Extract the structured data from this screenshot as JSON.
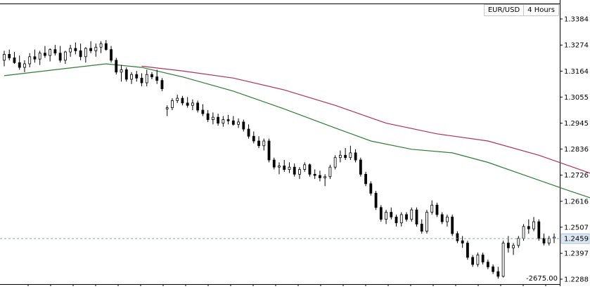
{
  "chart_data": {
    "type": "candlestick",
    "symbol": "EUR/USD",
    "timeframe": "4 Hours",
    "ylim": [
      1.2288,
      1.3384
    ],
    "y_ticks": [
      "1.3384",
      "1.3274",
      "1.3164",
      "1.3055",
      "1.2945",
      "1.2836",
      "1.2726",
      "1.2616",
      "1.2507",
      "1.2397",
      "1.2288"
    ],
    "current_price": "1.2459",
    "annotation": "-2675.00",
    "grid": false,
    "colors": {
      "up": "#ffffff",
      "down": "#000000",
      "ma_fast": "#2e7d32",
      "ma_slow": "#b0305a",
      "price_line": "#7fa3c8",
      "price_label_bg": "#dbe7f3"
    },
    "candles": [
      [
        1.321,
        1.325,
        1.3185,
        1.3235
      ],
      [
        1.3235,
        1.3255,
        1.321,
        1.322
      ],
      [
        1.322,
        1.3245,
        1.3195,
        1.32
      ],
      [
        1.32,
        1.323,
        1.317,
        1.318
      ],
      [
        1.318,
        1.321,
        1.316,
        1.3195
      ],
      [
        1.3195,
        1.324,
        1.318,
        1.3225
      ],
      [
        1.3225,
        1.3255,
        1.32,
        1.3215
      ],
      [
        1.3215,
        1.325,
        1.319,
        1.324
      ],
      [
        1.324,
        1.327,
        1.322,
        1.323
      ],
      [
        1.323,
        1.326,
        1.3205,
        1.3255
      ],
      [
        1.3255,
        1.3275,
        1.323,
        1.324
      ],
      [
        1.324,
        1.327,
        1.32,
        1.321
      ],
      [
        1.321,
        1.325,
        1.3195,
        1.3245
      ],
      [
        1.3245,
        1.3275,
        1.3225,
        1.326
      ],
      [
        1.326,
        1.3285,
        1.3235,
        1.325
      ],
      [
        1.325,
        1.328,
        1.321,
        1.3225
      ],
      [
        1.3225,
        1.3265,
        1.32,
        1.326
      ],
      [
        1.326,
        1.329,
        1.324,
        1.325
      ],
      [
        1.325,
        1.328,
        1.3225,
        1.3265
      ],
      [
        1.3265,
        1.329,
        1.324,
        1.328
      ],
      [
        1.328,
        1.3295,
        1.325,
        1.3255
      ],
      [
        1.3255,
        1.327,
        1.32,
        1.321
      ],
      [
        1.321,
        1.322,
        1.315,
        1.316
      ],
      [
        1.316,
        1.319,
        1.312,
        1.317
      ],
      [
        1.317,
        1.318,
        1.312,
        1.313
      ],
      [
        1.313,
        1.316,
        1.311,
        1.315
      ],
      [
        1.315,
        1.3165,
        1.312,
        1.3135
      ],
      [
        1.3135,
        1.3155,
        1.31,
        1.3115
      ],
      [
        1.3115,
        1.317,
        1.31,
        1.315
      ],
      [
        1.315,
        1.316,
        1.313,
        1.314
      ],
      [
        1.314,
        1.317,
        1.311,
        1.3125
      ],
      [
        1.3125,
        1.3135,
        1.308,
        1.309
      ],
      [
        1.3005,
        1.302,
        1.2975,
        1.301
      ],
      [
        1.301,
        1.305,
        1.3,
        1.304
      ],
      [
        1.304,
        1.3065,
        1.303,
        1.305
      ],
      [
        1.305,
        1.306,
        1.302,
        1.303
      ],
      [
        1.303,
        1.3055,
        1.301,
        1.302
      ],
      [
        1.302,
        1.3045,
        1.3,
        1.303
      ],
      [
        1.303,
        1.304,
        1.299,
        1.3
      ],
      [
        1.3,
        1.3025,
        1.2975,
        1.2985
      ],
      [
        1.2985,
        1.3,
        1.295,
        1.296
      ],
      [
        1.296,
        1.299,
        1.294,
        1.297
      ],
      [
        1.297,
        1.2985,
        1.2935,
        1.2945
      ],
      [
        1.2945,
        1.2975,
        1.293,
        1.296
      ],
      [
        1.296,
        1.298,
        1.294,
        1.2955
      ],
      [
        1.2955,
        1.2975,
        1.2935,
        1.294
      ],
      [
        1.294,
        1.2965,
        1.2925,
        1.295
      ],
      [
        1.295,
        1.296,
        1.291,
        1.292
      ],
      [
        1.292,
        1.294,
        1.288,
        1.289
      ],
      [
        1.289,
        1.291,
        1.286,
        1.287
      ],
      [
        1.287,
        1.289,
        1.284,
        1.285
      ],
      [
        1.285,
        1.288,
        1.283,
        1.287
      ],
      [
        1.287,
        1.288,
        1.278,
        1.279
      ],
      [
        1.279,
        1.28,
        1.275,
        1.276
      ],
      [
        1.276,
        1.278,
        1.273,
        1.2765
      ],
      [
        1.2765,
        1.279,
        1.274,
        1.275
      ],
      [
        1.275,
        1.278,
        1.2735,
        1.276
      ],
      [
        1.276,
        1.2775,
        1.272,
        1.273
      ],
      [
        1.273,
        1.276,
        1.271,
        1.275
      ],
      [
        1.275,
        1.278,
        1.274,
        1.277
      ],
      [
        1.277,
        1.2775,
        1.272,
        1.273
      ],
      [
        1.273,
        1.275,
        1.271,
        1.2725
      ],
      [
        1.2725,
        1.2745,
        1.27,
        1.2715
      ],
      [
        1.2715,
        1.273,
        1.268,
        1.272
      ],
      [
        1.272,
        1.277,
        1.271,
        1.276
      ],
      [
        1.276,
        1.281,
        1.275,
        1.28
      ],
      [
        1.28,
        1.283,
        1.278,
        1.281
      ],
      [
        1.281,
        1.284,
        1.279,
        1.28
      ],
      [
        1.28,
        1.285,
        1.279,
        1.282
      ],
      [
        1.282,
        1.2835,
        1.278,
        1.279
      ],
      [
        1.279,
        1.28,
        1.272,
        1.273
      ],
      [
        1.273,
        1.274,
        1.268,
        1.269
      ],
      [
        1.269,
        1.27,
        1.264,
        1.265
      ],
      [
        1.265,
        1.266,
        1.258,
        1.259
      ],
      [
        1.259,
        1.26,
        1.253,
        1.254
      ],
      [
        1.254,
        1.258,
        1.252,
        1.257
      ],
      [
        1.257,
        1.259,
        1.254,
        1.255
      ],
      [
        1.255,
        1.256,
        1.251,
        1.2525
      ],
      [
        1.2525,
        1.257,
        1.251,
        1.256
      ],
      [
        1.256,
        1.257,
        1.253,
        1.254
      ],
      [
        1.254,
        1.259,
        1.253,
        1.258
      ],
      [
        1.258,
        1.259,
        1.251,
        1.252
      ],
      [
        1.252,
        1.254,
        1.248,
        1.249
      ],
      [
        1.249,
        1.258,
        1.248,
        1.257
      ],
      [
        1.257,
        1.262,
        1.256,
        1.26
      ],
      [
        1.26,
        1.261,
        1.255,
        1.256
      ],
      [
        1.256,
        1.257,
        1.252,
        1.253
      ],
      [
        1.253,
        1.256,
        1.251,
        1.255
      ],
      [
        1.255,
        1.256,
        1.247,
        1.248
      ],
      [
        1.248,
        1.249,
        1.244,
        1.245
      ],
      [
        1.245,
        1.247,
        1.242,
        1.244
      ],
      [
        1.244,
        1.245,
        1.237,
        1.238
      ],
      [
        1.238,
        1.239,
        1.234,
        1.235
      ],
      [
        1.235,
        1.24,
        1.234,
        1.239
      ],
      [
        1.239,
        1.24,
        1.235,
        1.236
      ],
      [
        1.236,
        1.237,
        1.233,
        1.234
      ],
      [
        1.234,
        1.235,
        1.231,
        1.232
      ],
      [
        1.232,
        1.234,
        1.229,
        1.23
      ],
      [
        1.23,
        1.245,
        1.2295,
        1.244
      ],
      [
        1.244,
        1.247,
        1.24,
        1.242
      ],
      [
        1.242,
        1.244,
        1.239,
        1.243
      ],
      [
        1.243,
        1.247,
        1.242,
        1.246
      ],
      [
        1.246,
        1.252,
        1.245,
        1.251
      ],
      [
        1.251,
        1.254,
        1.248,
        1.25
      ],
      [
        1.25,
        1.255,
        1.249,
        1.253
      ],
      [
        1.253,
        1.254,
        1.245,
        1.246
      ],
      [
        1.246,
        1.248,
        1.243,
        1.244
      ],
      [
        1.244,
        1.247,
        1.243,
        1.246
      ],
      [
        1.246,
        1.248,
        1.244,
        1.2465
      ]
    ],
    "ma_fast": [
      [
        0,
        1.3145
      ],
      [
        10,
        1.317
      ],
      [
        20,
        1.3195
      ],
      [
        27,
        1.318
      ],
      [
        35,
        1.314
      ],
      [
        45,
        1.308
      ],
      [
        55,
        1.3005
      ],
      [
        65,
        1.2925
      ],
      [
        72,
        1.287
      ],
      [
        80,
        1.2835
      ],
      [
        88,
        1.282
      ],
      [
        95,
        1.278
      ],
      [
        103,
        1.272
      ],
      [
        111,
        1.266
      ],
      [
        118,
        1.261
      ],
      [
        123,
        1.257
      ],
      [
        127,
        1.2542
      ],
      [
        131,
        1.252
      ]
    ],
    "ma_slow": [
      [
        27,
        1.3185
      ],
      [
        35,
        1.3165
      ],
      [
        45,
        1.3135
      ],
      [
        55,
        1.3085
      ],
      [
        65,
        1.302
      ],
      [
        75,
        1.2945
      ],
      [
        85,
        1.29
      ],
      [
        95,
        1.287
      ],
      [
        105,
        1.281
      ],
      [
        115,
        1.2735
      ],
      [
        123,
        1.266
      ],
      [
        127,
        1.263
      ],
      [
        131,
        1.261
      ]
    ]
  }
}
